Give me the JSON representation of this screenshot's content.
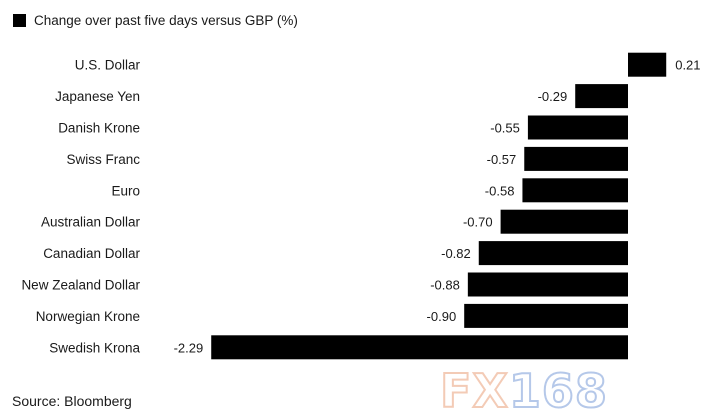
{
  "legend": {
    "label": "Change over past five days versus GBP (%)"
  },
  "source": "Source: Bloomberg",
  "watermark": {
    "letters": "FX",
    "digits": "168"
  },
  "colors": {
    "bar": "#000000",
    "background": "#ffffff"
  },
  "chart_data": {
    "type": "bar",
    "orientation": "horizontal",
    "title": "",
    "xlabel": "",
    "ylabel": "",
    "categories": [
      "U.S. Dollar",
      "Japanese Yen",
      "Danish Krone",
      "Swiss Franc",
      "Euro",
      "Australian Dollar",
      "Canadian Dollar",
      "New Zealand Dollar",
      "Norwegian Krone",
      "Swedish Krona"
    ],
    "values": [
      0.21,
      -0.29,
      -0.55,
      -0.57,
      -0.58,
      -0.7,
      -0.82,
      -0.88,
      -0.9,
      -2.29
    ],
    "value_labels": [
      "0.21",
      "-0.29",
      "-0.55",
      "-0.57",
      "-0.58",
      "-0.70",
      "-0.82",
      "-0.88",
      "-0.90",
      "-2.29"
    ],
    "series": [
      {
        "name": "Change over past five days versus GBP (%)"
      }
    ],
    "xlim": [
      -2.29,
      0.21
    ],
    "grid": false,
    "legend_position": "top-left"
  }
}
